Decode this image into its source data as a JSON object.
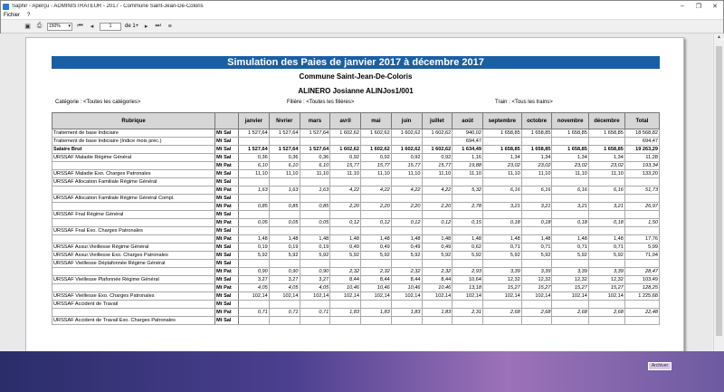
{
  "window": {
    "title": "Saphir - Aperçu - ADMINISTRATEUR - 2017 - Commune Saint-Jean-De-Coloris"
  },
  "menu": [
    "Fichier",
    "?"
  ],
  "toolbar": {
    "zoom": "150%",
    "page": "1",
    "page_of": "de 1+"
  },
  "report": {
    "title": "Simulation des Paies de janvier 2017 à décembre 2017",
    "commune": "Commune Saint-Jean-De-Coloris",
    "employee": "ALINERO Josianne  ALINJos1/001",
    "category": "Catégorie : <Toutes les catégories>",
    "filiere": "Filière : <Toutes les filières>",
    "train": "Train : <Tous les trains>"
  },
  "columns": [
    "Rubrique",
    "",
    "janvier",
    "février",
    "mars",
    "avril",
    "mai",
    "juin",
    "juillet",
    "août",
    "septembre",
    "octobre",
    "novembre",
    "décembre",
    "Total"
  ],
  "rows": [
    {
      "rub": "Traitement de base Indiciaire",
      "kind": "Mt Sal",
      "vals": [
        "1 527,64",
        "1 527,64",
        "1 527,64",
        "1 602,62",
        "1 602,62",
        "1 602,62",
        "1 602,62",
        "940,02",
        "1 658,85",
        "1 658,85",
        "1 658,85",
        "1 658,85",
        "18 568,82"
      ],
      "style": "top"
    },
    {
      "rub": "Traitement de base Indiciaire (Indice mois préc.)",
      "kind": "Mt Sal",
      "vals": [
        "",
        "",
        "",
        "",
        "",
        "",
        "",
        "694,47",
        "",
        "",
        "",
        "",
        "694,47"
      ],
      "style": "top"
    },
    {
      "rub": "Salaire Brut",
      "kind": "Mt Sal",
      "vals": [
        "1 527,64",
        "1 527,64",
        "1 527,64",
        "1 602,62",
        "1 602,62",
        "1 602,62",
        "1 602,62",
        "1 634,49",
        "1 658,85",
        "1 658,85",
        "1 658,85",
        "1 658,85",
        "19 263,29"
      ],
      "style": "bold top"
    },
    {
      "rub": "URSSAF Maladie Régime Général",
      "kind": "Mt Sal",
      "vals": [
        "0,36",
        "0,36",
        "0,36",
        "0,92",
        "0,92",
        "0,92",
        "0,92",
        "1,16",
        "1,34",
        "1,34",
        "1,34",
        "1,34",
        "11,28"
      ],
      "style": "top"
    },
    {
      "rub": "",
      "kind": "Mt Pat",
      "vals": [
        "6,10",
        "6,10",
        "6,10",
        "15,77",
        "15,77",
        "15,77",
        "15,77",
        "19,88",
        "23,02",
        "23,02",
        "23,02",
        "23,02",
        "193,34"
      ],
      "style": "pat"
    },
    {
      "rub": "URSSAF Maladie Exo. Charges Patronales",
      "kind": "Mt Sal",
      "vals": [
        "11,10",
        "11,10",
        "11,10",
        "11,10",
        "11,10",
        "11,10",
        "11,10",
        "11,10",
        "11,10",
        "11,10",
        "11,10",
        "11,10",
        "133,20"
      ],
      "style": "top"
    },
    {
      "rub": "URSSAF Allocation Familiale Régime Général",
      "kind": "Mt Sal",
      "vals": [
        "",
        "",
        "",
        "",
        "",
        "",
        "",
        "",
        "",
        "",
        "",
        "",
        ""
      ],
      "style": "top"
    },
    {
      "rub": "",
      "kind": "Mt Pat",
      "vals": [
        "1,63",
        "1,63",
        "1,63",
        "4,22",
        "4,22",
        "4,22",
        "4,22",
        "5,32",
        "6,16",
        "6,16",
        "6,16",
        "6,16",
        "51,73"
      ],
      "style": "pat"
    },
    {
      "rub": "URSSAF Allocation Familiale Régime Général Compl.",
      "kind": "Mt Sal",
      "vals": [
        "",
        "",
        "",
        "",
        "",
        "",
        "",
        "",
        "",
        "",
        "",
        "",
        ""
      ],
      "style": "top"
    },
    {
      "rub": "",
      "kind": "Mt Pat",
      "vals": [
        "0,85",
        "0,85",
        "0,85",
        "2,20",
        "2,20",
        "2,20",
        "2,20",
        "2,78",
        "3,21",
        "3,21",
        "3,21",
        "3,21",
        "26,97"
      ],
      "style": "pat"
    },
    {
      "rub": "URSSAF Fnal Régime Général",
      "kind": "Mt Sal",
      "vals": [
        "",
        "",
        "",
        "",
        "",
        "",
        "",
        "",
        "",
        "",
        "",
        "",
        ""
      ],
      "style": "top"
    },
    {
      "rub": "",
      "kind": "Mt Pat",
      "vals": [
        "0,05",
        "0,05",
        "0,05",
        "0,12",
        "0,12",
        "0,12",
        "0,12",
        "0,15",
        "0,18",
        "0,18",
        "0,18",
        "0,18",
        "1,50"
      ],
      "style": "pat"
    },
    {
      "rub": "URSSAF Fnal Exo. Charges Patronales",
      "kind": "Mt Sal",
      "vals": [
        "",
        "",
        "",
        "",
        "",
        "",
        "",
        "",
        "",
        "",
        "",
        "",
        ""
      ],
      "style": "top"
    },
    {
      "rub": "",
      "kind": "Mt Pat",
      "vals": [
        "1,48",
        "1,48",
        "1,48",
        "1,48",
        "1,48",
        "1,48",
        "1,48",
        "1,48",
        "1,48",
        "1,48",
        "1,48",
        "1,48",
        "17,76"
      ],
      "style": ""
    },
    {
      "rub": "URSSAF Assur.Vieillesse Régime Général",
      "kind": "Mt Sal",
      "vals": [
        "0,19",
        "0,19",
        "0,19",
        "0,49",
        "0,49",
        "0,49",
        "0,49",
        "0,62",
        "0,71",
        "0,71",
        "0,71",
        "0,71",
        "5,99"
      ],
      "style": "top"
    },
    {
      "rub": "URSSAF Assur.Vieillesse Exo. Charges Patronales",
      "kind": "Mt Sal",
      "vals": [
        "5,92",
        "5,92",
        "5,92",
        "5,92",
        "5,92",
        "5,92",
        "5,92",
        "5,92",
        "5,92",
        "5,92",
        "5,92",
        "5,92",
        "71,04"
      ],
      "style": "top"
    },
    {
      "rub": "URSSAF Vieillesse Déplafonnée Régime Général",
      "kind": "Mt Sal",
      "vals": [
        "",
        "",
        "",
        "",
        "",
        "",
        "",
        "",
        "",
        "",
        "",
        "",
        ""
      ],
      "style": "top"
    },
    {
      "rub": "",
      "kind": "Mt Pat",
      "vals": [
        "0,90",
        "0,90",
        "0,90",
        "2,32",
        "2,32",
        "2,32",
        "2,32",
        "2,93",
        "3,39",
        "3,39",
        "3,39",
        "3,39",
        "28,47"
      ],
      "style": "pat"
    },
    {
      "rub": "URSSAF Vieillesse Plafonnée Régime Général",
      "kind": "Mt Sal",
      "vals": [
        "3,27",
        "3,27",
        "3,27",
        "8,44",
        "8,44",
        "8,44",
        "8,44",
        "10,64",
        "12,32",
        "12,32",
        "12,32",
        "12,32",
        "103,49"
      ],
      "style": "top"
    },
    {
      "rub": "",
      "kind": "Mt Pat",
      "vals": [
        "4,05",
        "4,05",
        "4,05",
        "10,46",
        "10,46",
        "10,46",
        "10,46",
        "13,18",
        "15,27",
        "15,27",
        "15,27",
        "15,27",
        "128,25"
      ],
      "style": "pat"
    },
    {
      "rub": "URSSAF Vieillesse Exo. Charges Patronales",
      "kind": "Mt Sal",
      "vals": [
        "102,14",
        "102,14",
        "102,14",
        "102,14",
        "102,14",
        "102,14",
        "102,14",
        "102,14",
        "102,14",
        "102,14",
        "102,14",
        "102,14",
        "1 225,68"
      ],
      "style": "top"
    },
    {
      "rub": "URSSAF Accident de Travail",
      "kind": "Mt Sal",
      "vals": [
        "",
        "",
        "",
        "",
        "",
        "",
        "",
        "",
        "",
        "",
        "",
        "",
        ""
      ],
      "style": "top"
    },
    {
      "rub": "",
      "kind": "Mt Pat",
      "vals": [
        "0,71",
        "0,71",
        "0,71",
        "1,83",
        "1,83",
        "1,83",
        "1,83",
        "2,31",
        "2,68",
        "2,68",
        "2,68",
        "2,68",
        "22,48"
      ],
      "style": "pat"
    },
    {
      "rub": "URSSAF Accident de Travail Exo. Charges Patronales",
      "kind": "Mt Sal",
      "vals": [
        "",
        "",
        "",
        "",
        "",
        "",
        "",
        "",
        "",
        "",
        "",
        "",
        ""
      ],
      "style": "top"
    }
  ],
  "taskbar": {
    "button": "Archiver"
  }
}
